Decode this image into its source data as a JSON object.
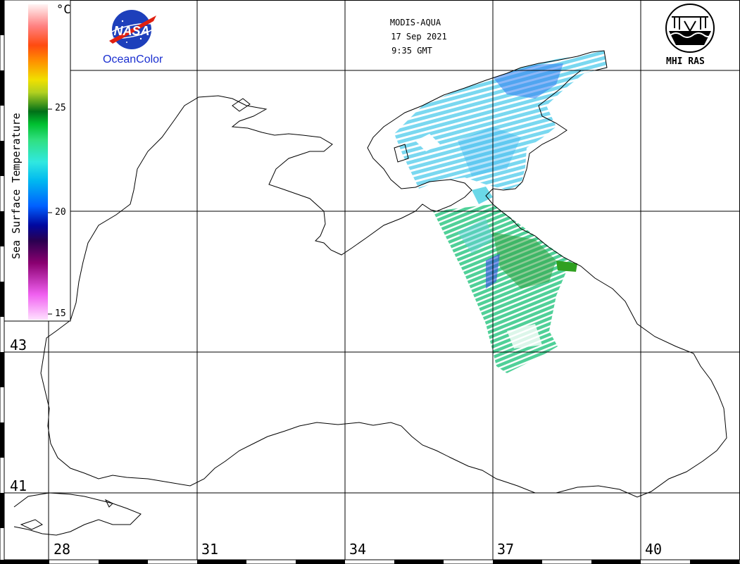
{
  "header": {
    "sensor": "MODIS-AQUA",
    "date": "17 Sep 2021",
    "time": "9:35 GMT"
  },
  "logos": {
    "nasa_text": "NASA",
    "oceancolor_text": "OceanColor",
    "mhi_text": "MHI RAS"
  },
  "legend": {
    "title": "Sea Surface Temperature",
    "unit": "°C",
    "ticks": [
      "25",
      "20",
      "15"
    ],
    "range": [
      15,
      29
    ],
    "colors": [
      "#ffd8ff",
      "#f060f0",
      "#900090",
      "#3a0060",
      "#0010a0",
      "#0060ff",
      "#00b0ff",
      "#40f0f0",
      "#30e090",
      "#00c040",
      "#007010",
      "#a0d020",
      "#e0e000",
      "#ffa000",
      "#ff5000",
      "#ff6060",
      "#ffa0a0",
      "#fff0f0"
    ]
  },
  "grid": {
    "latitude_labels": [
      "43",
      "41"
    ],
    "longitude_labels": [
      "28",
      "31",
      "34",
      "37",
      "40"
    ]
  },
  "colors": {
    "coast": "#000000",
    "grid": "#000000",
    "nasa_blue": "#1a2fd0",
    "nasa_red": "#e01010"
  }
}
